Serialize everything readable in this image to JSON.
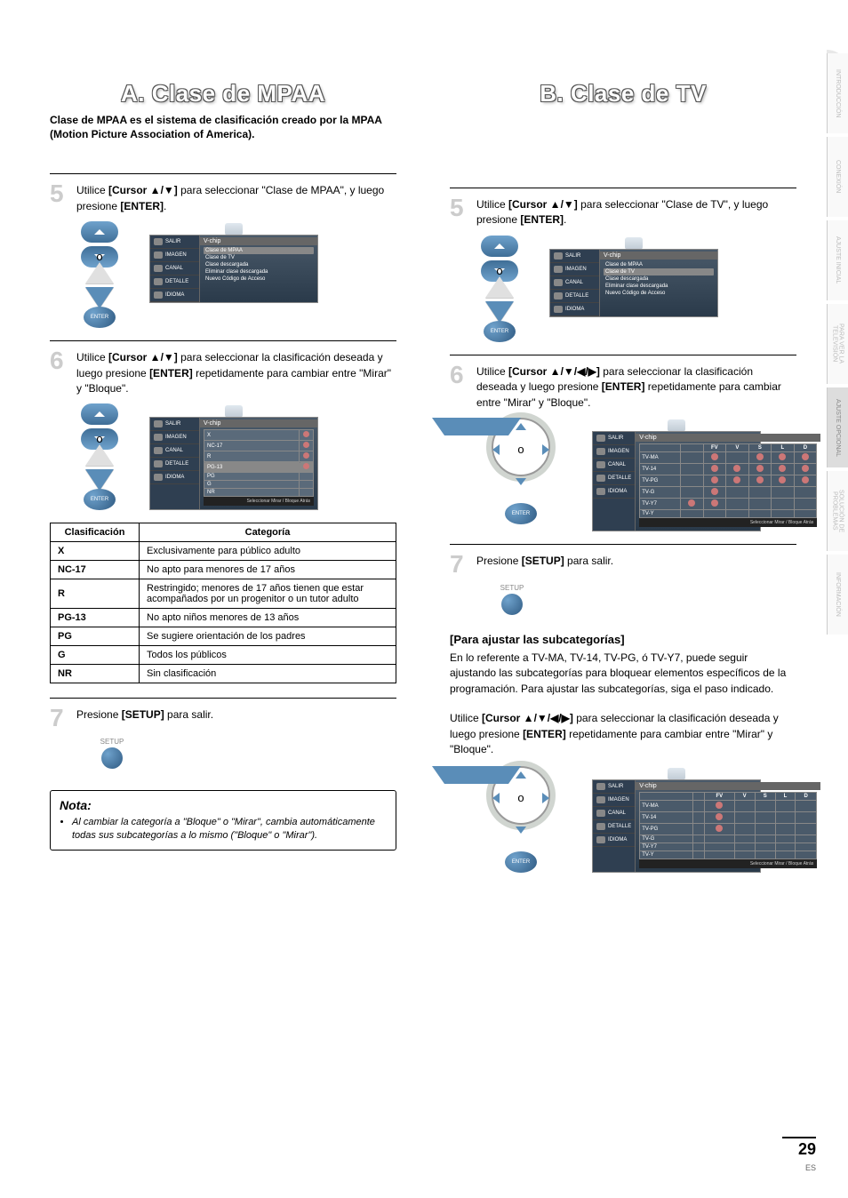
{
  "rightTabs": [
    "INTRODUCCIÓN",
    "CONEXIÓN",
    "AJUSTE INICIAL",
    "PARA VER LA TELEVISIÓN",
    "AJUSTE OPCIONAL",
    "SOLUCIÓN DE PROBLEMAS",
    "INFORMACIÓN"
  ],
  "activeTabIndex": 4,
  "titles": {
    "a": "A.  Clase de MPAA",
    "b": "B.  Clase de TV"
  },
  "intro": "Clase de MPAA es el sistema de clasificación creado por la MPAA (Motion Picture Association of America).",
  "stepsA": {
    "s5": "Utilice [Cursor ▲/▼] para seleccionar \"Clase de MPAA\", y luego presione [ENTER].",
    "s6": "Utilice [Cursor ▲/▼] para seleccionar la clasificación deseada y luego presione [ENTER] repetidamente para cambiar entre \"Mirar\" y \"Bloque\".",
    "s7": "Presione [SETUP] para salir."
  },
  "stepsB": {
    "s5": "Utilice [Cursor ▲/▼] para seleccionar \"Clase de TV\", y luego presione [ENTER].",
    "s6": "Utilice [Cursor ▲/▼/◀/▶] para seleccionar la clasificación deseada y luego presione [ENTER] repetidamente para cambiar entre \"Mirar\" y \"Bloque\".",
    "s7": "Presione [SETUP] para salir."
  },
  "osd": {
    "leftMenu": [
      "SALIR",
      "IMAGEN",
      "CANAL",
      "DETALLE",
      "IDIOMA"
    ],
    "vchipTitle": "V-chip",
    "vchipItems": [
      "Clase de MPAA",
      "Clase de TV",
      "Clase descargada",
      "Eliminar clase descargada",
      "Nuevo Código de Acceso"
    ],
    "highlightA": 0,
    "highlightB": 1,
    "mpaaRatings": [
      "X",
      "NC-17",
      "R",
      "PG-13",
      "PG",
      "G",
      "NR"
    ],
    "mpaaSelectedIndex": 3,
    "tvHeader": [
      "FV",
      "V",
      "S",
      "L",
      "D"
    ],
    "tvRows": [
      {
        "label": "TV-MA",
        "cells": [
          0,
          1,
          0,
          1,
          1,
          1
        ]
      },
      {
        "label": "TV-14",
        "cells": [
          0,
          1,
          1,
          1,
          1,
          1
        ]
      },
      {
        "label": "TV-PG",
        "cells": [
          0,
          1,
          1,
          1,
          1,
          1
        ]
      },
      {
        "label": "TV-G",
        "cells": [
          0,
          1,
          0,
          0,
          0,
          0
        ]
      },
      {
        "label": "TV-Y7",
        "cells": [
          1,
          1,
          0,
          0,
          0,
          0
        ]
      },
      {
        "label": "TV-Y",
        "cells": [
          0,
          0,
          0,
          0,
          0,
          0
        ]
      }
    ],
    "tvRows2": [
      {
        "label": "TV-MA",
        "cells": [
          0,
          1,
          0,
          0,
          0,
          0
        ]
      },
      {
        "label": "TV-14",
        "cells": [
          0,
          1,
          0,
          0,
          0,
          0
        ]
      },
      {
        "label": "TV-PG",
        "cells": [
          0,
          1,
          0,
          0,
          0,
          0
        ]
      },
      {
        "label": "TV-G",
        "cells": [
          0,
          0,
          0,
          0,
          0,
          0
        ]
      },
      {
        "label": "TV-Y7",
        "cells": [
          0,
          0,
          0,
          0,
          0,
          0
        ]
      },
      {
        "label": "TV-Y",
        "cells": [
          0,
          0,
          0,
          0,
          0,
          0
        ]
      }
    ],
    "footer": "Seleccionar   Mirar / Bloque   Atrás"
  },
  "classTable": {
    "headers": [
      "Clasificación",
      "Categoría"
    ],
    "rows": [
      [
        "X",
        "Exclusivamente para público adulto"
      ],
      [
        "NC-17",
        "No apto para menores de 17 años"
      ],
      [
        "R",
        "Restringido; menores de 17 años tienen que estar acompañados por un progenitor o un tutor adulto"
      ],
      [
        "PG-13",
        "No apto niños menores de 13 años"
      ],
      [
        "PG",
        "Se sugiere orientación de los padres"
      ],
      [
        "G",
        "Todos los públicos"
      ],
      [
        "NR",
        "Sin clasificación"
      ]
    ]
  },
  "subcat": {
    "header": "[Para ajustar las subcategorías]",
    "body": "En lo referente a TV-MA, TV-14, TV-PG, ó TV-Y7, puede seguir ajustando las subcategorías para bloquear elementos específicos de la programación. Para ajustar las subcategorías, siga el paso indicado.",
    "instr": "Utilice [Cursor ▲/▼/◀/▶] para seleccionar la clasificación deseada y luego presione [ENTER] repetidamente para cambiar entre \"Mirar\" y \"Bloque\"."
  },
  "nota": {
    "title": "Nota:",
    "bullet": "Al cambiar la categoría a \"Bloque\" o \"Mirar\", cambia automáticamente todas sus subcategorías a lo mismo (\"Bloque\" o \"Mirar\")."
  },
  "setupLabel": "SETUP",
  "enterLabel": "ENTER",
  "pageNumber": "29",
  "pageLang": "ES"
}
